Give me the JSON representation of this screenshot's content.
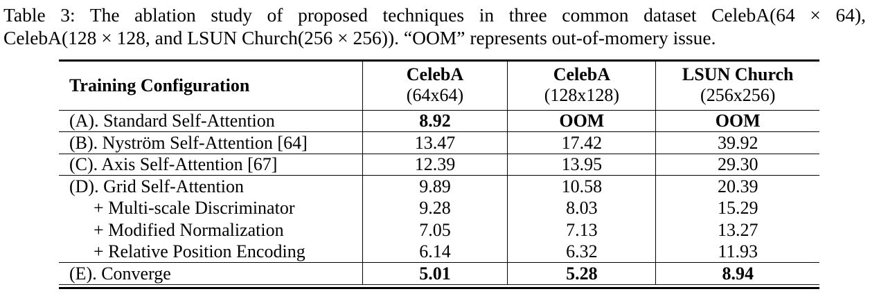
{
  "caption": {
    "line1": "Table 3:  The ablation study of proposed techniques in three common dataset CelebA(64 × 64),",
    "line2": "CelebA(128 × 128, and LSUN Church(256 × 256)). “OOM” represents out-of-momery issue."
  },
  "table": {
    "row_header_label": "Training Configuration",
    "columns": [
      {
        "dataset": "CelebA",
        "resolution": "(64x64)"
      },
      {
        "dataset": "CelebA",
        "resolution": "(128x128)"
      },
      {
        "dataset": "LSUN Church",
        "resolution": "(256x256)"
      }
    ],
    "rows": [
      {
        "label": "(A). Standard Self-Attention",
        "values": [
          "8.92",
          "OOM",
          "OOM"
        ]
      },
      {
        "label": "(B). Nyström Self-Attention [64]",
        "values": [
          "13.47",
          "17.42",
          "39.92"
        ]
      },
      {
        "label": "(C). Axis Self-Attention [67]",
        "values": [
          "12.39",
          "13.95",
          "29.30"
        ]
      },
      {
        "label": "(D). Grid Self-Attention",
        "values": [
          "9.89",
          "10.58",
          "20.39"
        ]
      },
      {
        "label": "+ Multi-scale Discriminator",
        "values": [
          "9.28",
          "8.03",
          "15.29"
        ]
      },
      {
        "label": "+ Modified Normalization",
        "values": [
          "7.05",
          "7.13",
          "13.27"
        ]
      },
      {
        "label": "+ Relative Position Encoding",
        "values": [
          "6.14",
          "6.32",
          "11.93"
        ]
      },
      {
        "label": "(E). Converge",
        "values": [
          "5.01",
          "5.28",
          "8.94"
        ]
      }
    ]
  }
}
